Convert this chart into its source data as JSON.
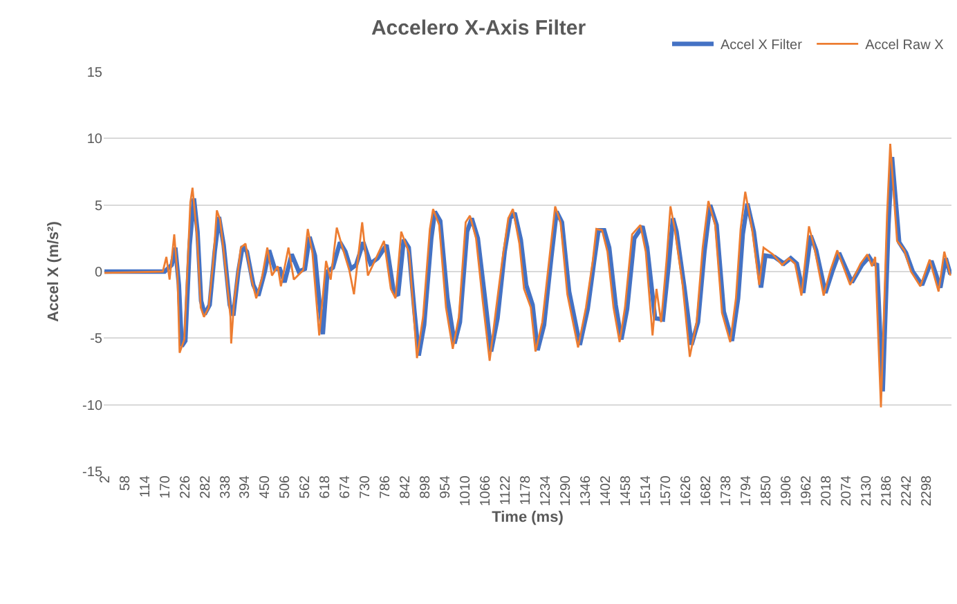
{
  "chart_data": {
    "type": "line",
    "title": "Accelero X-Axis Filter",
    "xlabel": "Time (ms)",
    "ylabel": "Accel X (m/s²)",
    "xlim": [
      0,
      2368
    ],
    "xticks": [
      2,
      58,
      114,
      170,
      226,
      282,
      338,
      394,
      450,
      506,
      562,
      618,
      674,
      730,
      786,
      842,
      898,
      954,
      1010,
      1066,
      1122,
      1178,
      1234,
      1290,
      1346,
      1402,
      1458,
      1514,
      1570,
      1626,
      1682,
      1738,
      1794,
      1850,
      1906,
      1962,
      2018,
      2074,
      2130,
      2186,
      2242,
      2298
    ],
    "ylim": [
      -15,
      15
    ],
    "yticks": [
      -15,
      -10,
      -5,
      0,
      5,
      10,
      15
    ],
    "grid": "y",
    "legend": "top right",
    "line_style": "solid",
    "marker": "none",
    "series": [
      {
        "name": "Accel X Filter",
        "color": "#4472c4",
        "x": [
          2,
          170,
          190,
          200,
          210,
          218,
          228,
          240,
          252,
          262,
          272,
          282,
          296,
          310,
          322,
          335,
          352,
          362,
          376,
          388,
          400,
          418,
          432,
          450,
          462,
          478,
          492,
          505,
          525,
          545,
          562,
          575,
          590,
          605,
          612,
          625,
          640,
          660,
          675,
          690,
          705,
          725,
          745,
          765,
          790,
          810,
          822,
          838,
          852,
          868,
          880,
          895,
          915,
          925,
          940,
          960,
          980,
          995,
          1015,
          1028,
          1045,
          1065,
          1082,
          1100,
          1120,
          1135,
          1148,
          1165,
          1180,
          1198,
          1212,
          1230,
          1250,
          1265,
          1280,
          1300,
          1330,
          1352,
          1370,
          1382,
          1398,
          1412,
          1430,
          1446,
          1462,
          1482,
          1505,
          1518,
          1540,
          1562,
          1578,
          1590,
          1600,
          1622,
          1642,
          1660,
          1678,
          1694,
          1712,
          1732,
          1755,
          1772,
          1785,
          1798,
          1816,
          1836,
          1848,
          1874,
          1900,
          1919,
          1936,
          1954,
          1975,
          1990,
          2016,
          2035,
          2054,
          2090,
          2118,
          2138,
          2150,
          2160,
          2176,
          2192,
          2202,
          2222,
          2241,
          2260,
          2286,
          2312,
          2337,
          2352,
          2365
        ],
        "values": [
          0,
          0,
          0.5,
          1.8,
          -1,
          -5.6,
          -5.2,
          2,
          5.5,
          3,
          -2.2,
          -3.2,
          -2.5,
          1.5,
          4.1,
          2,
          -2.5,
          -3.3,
          0,
          1.9,
          1.5,
          -1,
          -1.8,
          0,
          1.6,
          0.2,
          0.2,
          -0.8,
          1.3,
          0,
          0.2,
          2.6,
          1.2,
          -3,
          -4.7,
          0,
          0.3,
          2.2,
          1.5,
          0.2,
          0.5,
          2.2,
          0.6,
          1,
          2,
          -1.5,
          -1.8,
          2.4,
          1.8,
          -3,
          -6.3,
          -4,
          2.5,
          4.5,
          3.8,
          -2,
          -5.4,
          -3.8,
          3,
          4,
          2.5,
          -2,
          -6,
          -3.5,
          1.5,
          4,
          4.4,
          2.4,
          -1,
          -2.5,
          -5.9,
          -4,
          1,
          4.5,
          3.7,
          -1.5,
          -5.5,
          -2.8,
          0.8,
          3.1,
          3.1,
          1.8,
          -2.5,
          -5.1,
          -2.8,
          2.5,
          3.4,
          1.8,
          -3.5,
          -3.6,
          0.5,
          4,
          3,
          -1.2,
          -5.5,
          -3.8,
          1.5,
          5,
          3.5,
          -3,
          -5.2,
          -2,
          2.8,
          5.1,
          3,
          -1.2,
          1.2,
          1.1,
          0.6,
          1,
          0.6,
          -1.6,
          2.7,
          1.6,
          -1.6,
          0,
          1.4,
          -0.8,
          0.5,
          1.1,
          0.6,
          0.5,
          -9,
          3.5,
          8.6,
          2.2,
          1.4,
          0,
          -1,
          0.8,
          -1.2,
          1,
          -0.2
        ]
      },
      {
        "name": "Accel Raw X",
        "color": "#ed7d31",
        "x": [
          2,
          165,
          175,
          184,
          197,
          206,
          212,
          225,
          242,
          248,
          261,
          271,
          280,
          293,
          306,
          316,
          325,
          338,
          354,
          356,
          364,
          383,
          396,
          413,
          426,
          441,
          457,
          470,
          486,
          495,
          516,
          531,
          557,
          570,
          583,
          602,
          621,
          634,
          651,
          667,
          686,
          699,
          712,
          722,
          738,
          757,
          783,
          802,
          815,
          831,
          853,
          875,
          892,
          911,
          920,
          937,
          956,
          975,
          992,
          1011,
          1023,
          1040,
          1059,
          1078,
          1095,
          1113,
          1130,
          1143,
          1161,
          1174,
          1193,
          1206,
          1225,
          1244,
          1261,
          1276,
          1295,
          1325,
          1347,
          1366,
          1376,
          1392,
          1407,
          1424,
          1441,
          1456,
          1476,
          1499,
          1514,
          1533,
          1544,
          1557,
          1572,
          1583,
          1595,
          1617,
          1637,
          1656,
          1673,
          1689,
          1708,
          1727,
          1750,
          1766,
          1779,
          1792,
          1811,
          1831,
          1843,
          1869,
          1895,
          1914,
          1931,
          1949,
          1970,
          1985,
          2011,
          2030,
          2049,
          2085,
          2114,
          2133,
          2146,
          2155,
          2171,
          2188,
          2197,
          2216,
          2236,
          2255,
          2281,
          2307,
          2332,
          2348,
          2365
        ],
        "values": [
          -0.1,
          0,
          1.1,
          -0.6,
          2.8,
          -0.3,
          -6.1,
          -5.1,
          5.2,
          6.3,
          2.5,
          -2.7,
          -3.4,
          -2.7,
          0.8,
          4.6,
          3.9,
          0.8,
          -3.4,
          -5.4,
          -2.3,
          1.8,
          2.1,
          -0.6,
          -2,
          -0.6,
          1.8,
          -0.3,
          0.4,
          -1.1,
          1.8,
          -0.6,
          0.1,
          3.2,
          1.4,
          -4.8,
          0.8,
          -0.6,
          3.3,
          1.8,
          0.1,
          -1.7,
          1.4,
          3.7,
          -0.3,
          0.8,
          2.3,
          -1.3,
          -2,
          3,
          1.4,
          -6.5,
          -3.4,
          3.2,
          4.7,
          3.5,
          -2.7,
          -5.8,
          -3.4,
          3.7,
          4.2,
          2.5,
          -2.3,
          -6.7,
          -3,
          0.8,
          4,
          4.7,
          2.1,
          -1.3,
          -2.7,
          -6,
          -3.8,
          0.8,
          4.9,
          3.7,
          -1.7,
          -5.7,
          -2.7,
          0.8,
          3.2,
          3.1,
          1.5,
          -2.7,
          -5.3,
          -2.7,
          2.8,
          3.5,
          1.5,
          -4.8,
          -1.3,
          -3.8,
          0.8,
          4.9,
          3.2,
          -1,
          -6.4,
          -3.8,
          1.8,
          5.3,
          3.5,
          -3.1,
          -5.3,
          -2,
          3.2,
          6,
          3.2,
          -1,
          1.8,
          1.3,
          0.5,
          1,
          0.6,
          -1.8,
          3.4,
          1.8,
          -1.8,
          0.1,
          1.6,
          -1,
          0.6,
          1.3,
          0.4,
          1.1,
          -10.2,
          4.2,
          9.6,
          2.3,
          1.6,
          0,
          -1.1,
          0.9,
          -1.5,
          1.5,
          -0.3
        ]
      }
    ]
  }
}
